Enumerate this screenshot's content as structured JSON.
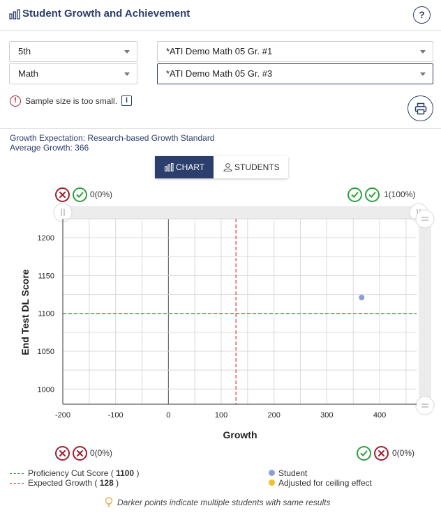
{
  "header": {
    "title": "Student Growth and Achievement",
    "help_label": "?"
  },
  "filters": {
    "grade": "5th",
    "subject": "Math",
    "test_1": "*ATI Demo Math 05 Gr. #1",
    "test_2": "*ATI Demo Math 05 Gr. #3"
  },
  "warning": {
    "text": "Sample size is too small.",
    "icon_label": "!",
    "info_label": "i"
  },
  "summary": {
    "growth_expectation": "Growth Expectation: Research-based Growth Standard",
    "average_growth": "Average Growth: 366"
  },
  "view_toggle": {
    "chart_label": "CHART",
    "students_label": "STUDENTS",
    "selected": "chart"
  },
  "quadrants": {
    "top_left": {
      "text": "0(0%)",
      "icons": [
        "x",
        "check"
      ]
    },
    "top_right": {
      "text": "1(100%)",
      "icons": [
        "check",
        "check"
      ]
    },
    "bottom_left": {
      "text": "0(0%)",
      "icons": [
        "x",
        "x"
      ]
    },
    "bottom_right": {
      "text": "0(0%)",
      "icons": [
        "check",
        "x"
      ]
    }
  },
  "chart_data": {
    "type": "scatter",
    "xlabel": "Growth",
    "ylabel": "End Test DL Score",
    "xlim": [
      -200,
      470
    ],
    "ylim": [
      980,
      1225
    ],
    "x_ticks": [
      -200,
      -100,
      0,
      100,
      200,
      300,
      400
    ],
    "y_ticks": [
      1000,
      1050,
      1100,
      1150,
      1200
    ],
    "points": [
      {
        "x": 366,
        "y": 1121,
        "type": "Student"
      }
    ],
    "proficiency_cut_score": 1100,
    "expected_growth": 128,
    "grid": true
  },
  "legend": {
    "proficiency": {
      "label": "Proficiency Cut Score (",
      "value": "1100",
      "suffix": " )"
    },
    "expected": {
      "label": "Expected Growth (",
      "value": "128",
      "suffix": " )"
    },
    "student": "Student",
    "adjusted": "Adjusted for ceiling effect"
  },
  "footnote": "Darker points indicate multiple students with same results",
  "colors": {
    "primary": "#2c3e6b",
    "proficiency_line": "#2e9e3f",
    "expected_line": "#e0313c",
    "student_point": "#8a9fd6",
    "adjusted_point": "#f5c02a",
    "error": "#a01c2b",
    "success": "#2e9e3f"
  }
}
